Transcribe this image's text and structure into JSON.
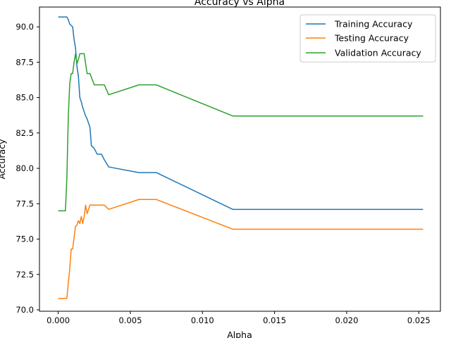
{
  "chart_data": {
    "type": "line",
    "title": "Accuracy vs Alpha",
    "xlabel": "Alpha",
    "ylabel": "Accuracy",
    "xlim": [
      -0.0013,
      0.0265
    ],
    "ylim": [
      69.9,
      91.4
    ],
    "xticks": [
      0.0,
      0.005,
      0.01,
      0.015,
      0.02,
      0.025
    ],
    "xtick_labels": [
      "0.000",
      "0.005",
      "0.010",
      "0.015",
      "0.020",
      "0.025"
    ],
    "yticks": [
      70.0,
      72.5,
      75.0,
      77.5,
      80.0,
      82.5,
      85.0,
      87.5,
      90.0
    ],
    "ytick_labels": [
      "70.0",
      "72.5",
      "75.0",
      "77.5",
      "80.0",
      "82.5",
      "85.0",
      "87.5",
      "90.0"
    ],
    "grid": false,
    "legend_position": "top-right",
    "series": [
      {
        "name": "Training Accuracy",
        "color": "#1f77b4",
        "x": [
          0.0,
          0.0006,
          0.0007,
          0.0008,
          0.001,
          0.0011,
          0.0012,
          0.0013,
          0.0014,
          0.0015,
          0.0016,
          0.0017,
          0.0018,
          0.0019,
          0.002,
          0.0021,
          0.0022,
          0.0023,
          0.0025,
          0.0027,
          0.003,
          0.0032,
          0.0035,
          0.0056,
          0.0068,
          0.0121,
          0.0253
        ],
        "y": [
          90.7,
          90.7,
          90.5,
          90.2,
          90.0,
          89.1,
          88.5,
          87.2,
          86.5,
          85.0,
          84.7,
          84.3,
          84.0,
          83.7,
          83.5,
          83.2,
          82.9,
          81.6,
          81.4,
          81.0,
          81.0,
          80.6,
          80.1,
          79.7,
          79.7,
          77.1,
          77.1
        ]
      },
      {
        "name": "Testing Accuracy",
        "color": "#ff7f0e",
        "x": [
          0.0,
          0.0006,
          0.0007,
          0.0008,
          0.0009,
          0.001,
          0.0011,
          0.0012,
          0.0013,
          0.0014,
          0.0015,
          0.0016,
          0.0017,
          0.0018,
          0.0019,
          0.002,
          0.0022,
          0.0025,
          0.003,
          0.0032,
          0.0035,
          0.0056,
          0.0068,
          0.0121,
          0.0253
        ],
        "y": [
          70.8,
          70.8,
          71.9,
          72.9,
          74.3,
          74.3,
          75.1,
          75.9,
          76.0,
          76.3,
          76.1,
          76.6,
          76.1,
          76.6,
          77.4,
          76.8,
          77.4,
          77.4,
          77.4,
          77.4,
          77.1,
          77.8,
          77.8,
          75.7,
          75.7
        ]
      },
      {
        "name": "Validation Accuracy",
        "color": "#2ca02c",
        "x": [
          0.0,
          0.0005,
          0.0006,
          0.0007,
          0.0008,
          0.0009,
          0.001,
          0.0011,
          0.0012,
          0.0013,
          0.0014,
          0.0015,
          0.0016,
          0.0018,
          0.002,
          0.0022,
          0.0025,
          0.0028,
          0.0032,
          0.0035,
          0.0056,
          0.0068,
          0.0121,
          0.0253
        ],
        "y": [
          77.0,
          77.0,
          79.3,
          83.7,
          86.0,
          86.7,
          86.7,
          87.5,
          88.1,
          87.4,
          87.7,
          88.1,
          88.1,
          88.1,
          86.7,
          86.7,
          85.9,
          85.9,
          85.9,
          85.2,
          85.9,
          85.9,
          83.7,
          83.7
        ]
      }
    ]
  }
}
